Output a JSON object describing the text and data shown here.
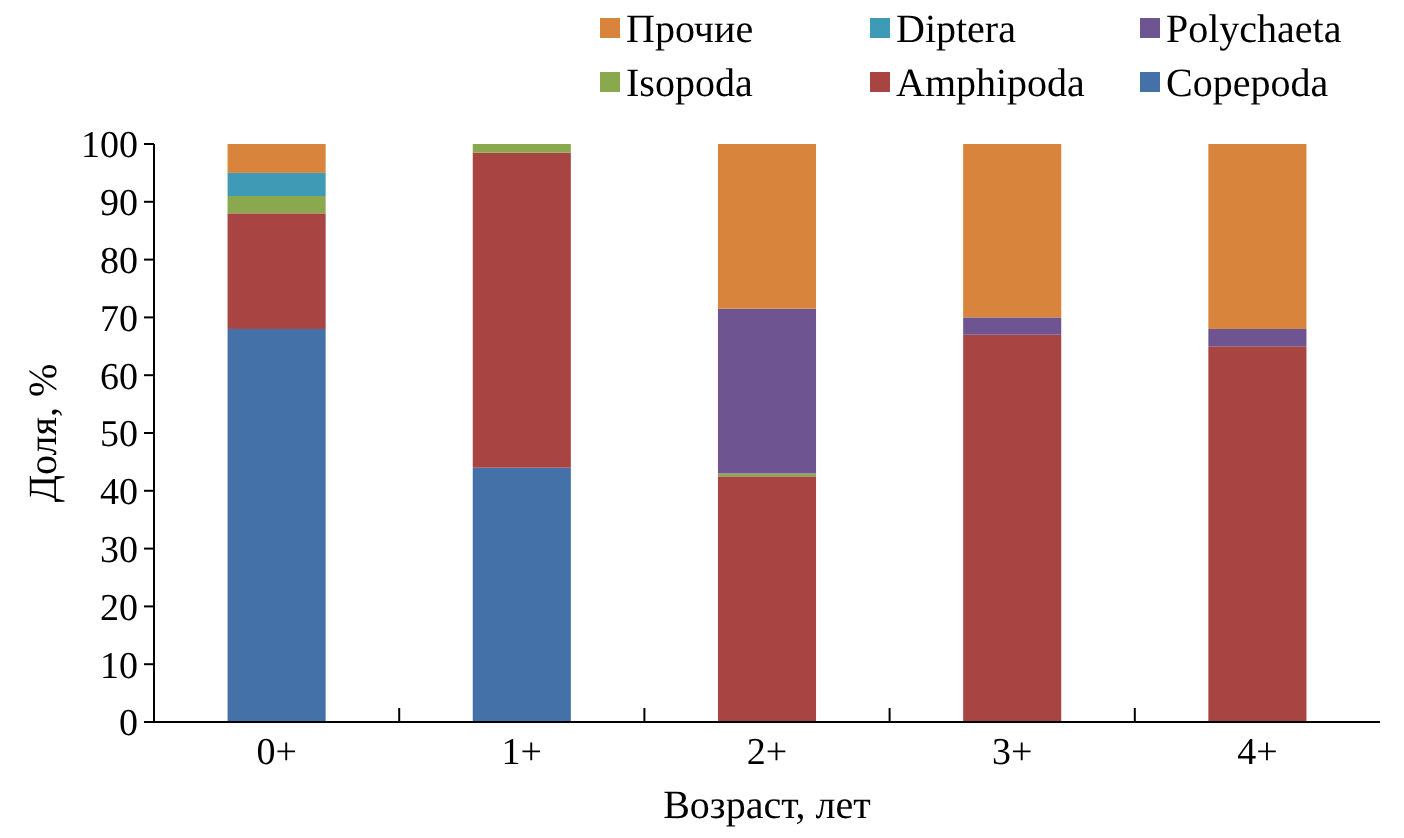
{
  "chart_data": {
    "type": "bar",
    "stacked": true,
    "xlabel": "Возраст, лет",
    "ylabel": "Доля, %",
    "categories": [
      "0+",
      "1+",
      "2+",
      "3+",
      "4+"
    ],
    "ylim": [
      0,
      100
    ],
    "yticks": [
      0,
      10,
      20,
      30,
      40,
      50,
      60,
      70,
      80,
      90,
      100
    ],
    "legend": "top right",
    "series": [
      {
        "name": "Copepoda",
        "color": "#4472a8",
        "values": [
          68,
          44,
          0,
          0,
          0
        ]
      },
      {
        "name": "Amphipoda",
        "color": "#a84442",
        "values": [
          20,
          54.5,
          42.5,
          67,
          65
        ]
      },
      {
        "name": "Isopoda",
        "color": "#8aa84e",
        "values": [
          3,
          1.5,
          0.5,
          0,
          0
        ]
      },
      {
        "name": "Polychaeta",
        "color": "#6e5592",
        "values": [
          0,
          0,
          28.5,
          3,
          3
        ]
      },
      {
        "name": "Diptera",
        "color": "#3e9ab5",
        "values": [
          4,
          0,
          0,
          0,
          0
        ]
      },
      {
        "name": "Прочие",
        "color": "#d9843c",
        "values": [
          5,
          0,
          28.5,
          30,
          32
        ]
      }
    ]
  }
}
